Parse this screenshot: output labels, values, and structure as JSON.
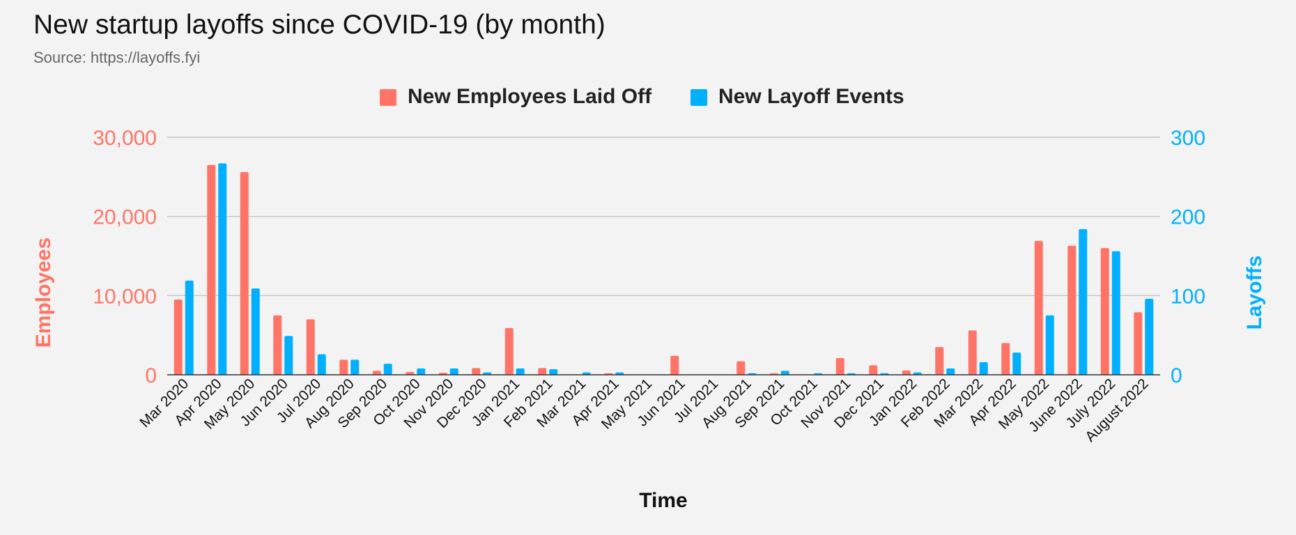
{
  "chart_data": {
    "type": "bar",
    "title": "New startup layoffs since COVID-19 (by month)",
    "subtitle": "Source: https://layoffs.fyi",
    "xlabel": "Time",
    "ylabel_left": "Employees",
    "ylabel_right": "Layoffs",
    "ylim_left": [
      0,
      30000
    ],
    "ylim_right": [
      0,
      300
    ],
    "yticks_left": [
      "0",
      "10,000",
      "20,000",
      "30,000"
    ],
    "yticks_right": [
      "0",
      "100",
      "200",
      "300"
    ],
    "grid": true,
    "legend_position": "top-center",
    "categories": [
      "Mar 2020",
      "Apr 2020",
      "May 2020",
      "Jun 2020",
      "Jul 2020",
      "Aug 2020",
      "Sep 2020",
      "Oct 2020",
      "Nov 2020",
      "Dec 2020",
      "Jan 2021",
      "Feb 2021",
      "Mar 2021",
      "Apr 2021",
      "May 2021",
      "Jun 2021",
      "Jul 2021",
      "Aug 2021",
      "Sep 2021",
      "Oct 2021",
      "Nov 2021",
      "Dec 2021",
      "Jan 2022",
      "Feb 2022",
      "Mar 2022",
      "Apr 2022",
      "May 2022",
      "June 2022",
      "July 2022",
      "August 2022"
    ],
    "series": [
      {
        "name": "New Employees Laid Off",
        "axis": "left",
        "color": "#ff7466",
        "values": [
          9500,
          26500,
          25600,
          7500,
          7000,
          1900,
          500,
          350,
          250,
          850,
          5900,
          850,
          0,
          200,
          0,
          2400,
          0,
          1700,
          200,
          0,
          2100,
          1200,
          550,
          3500,
          5600,
          4000,
          16900,
          16300,
          16000,
          7900
        ]
      },
      {
        "name": "New Layoff Events",
        "axis": "right",
        "color": "#00b0ff",
        "values": [
          119,
          267,
          109,
          49,
          26,
          19,
          14,
          8,
          8,
          3,
          8,
          7,
          3,
          3,
          0,
          0,
          0,
          2,
          5,
          2,
          2,
          2,
          3,
          8,
          16,
          28,
          75,
          184,
          156,
          96
        ]
      }
    ]
  }
}
